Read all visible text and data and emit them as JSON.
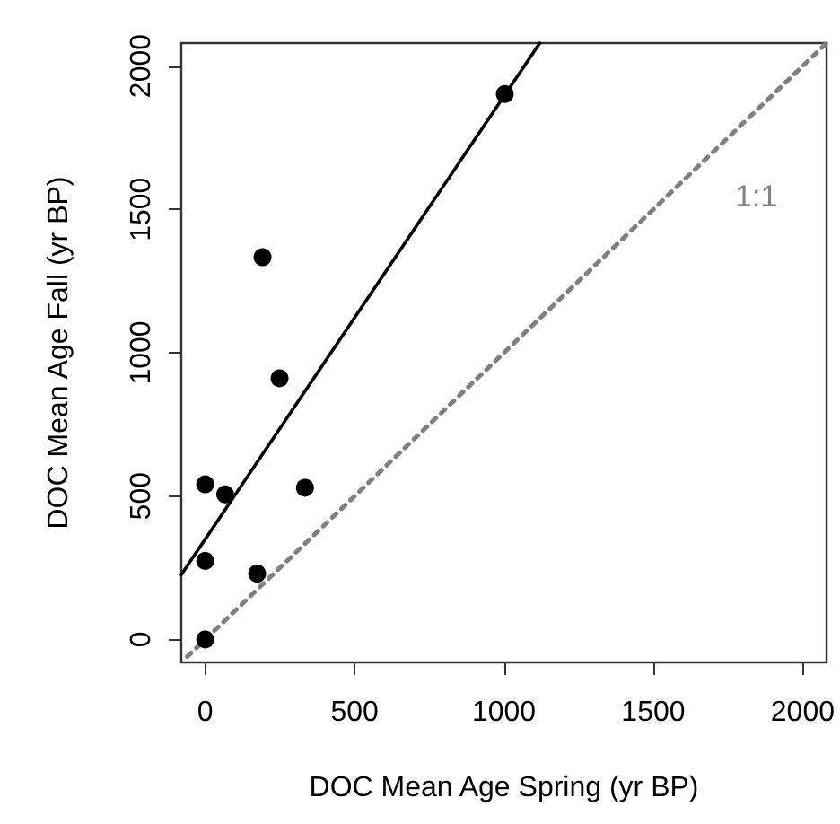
{
  "chart_data": {
    "type": "scatter",
    "xlabel": "DOC Mean Age Spring (yr BP)",
    "ylabel": "DOC Mean Age Fall (yr BP)",
    "xlim": [
      -80,
      2080
    ],
    "ylim": [
      -80,
      2080
    ],
    "xticks": [
      0,
      500,
      1000,
      1500,
      2000
    ],
    "yticks": [
      0,
      500,
      1000,
      1500,
      2000
    ],
    "grid": false,
    "legend": false,
    "marker": "circle",
    "series": [
      {
        "color": "#000000",
        "x": [
          0,
          0,
          0,
          67,
          174,
          192,
          249,
          334,
          1003
        ],
        "values": [
          0,
          274,
          541,
          506,
          230,
          1333,
          911,
          529,
          1902
        ]
      },
      {
        "type": "line",
        "color": "#000000",
        "marker": "none",
        "line_style": "solid",
        "x": [
          -80,
          1120
        ],
        "values": [
          226,
          2080
        ]
      },
      {
        "type": "line",
        "name": "1:1",
        "color": "#808080",
        "marker": "none",
        "line_style": "dotted",
        "x": [
          -60,
          2080
        ],
        "values": [
          -60,
          2080
        ]
      }
    ]
  }
}
